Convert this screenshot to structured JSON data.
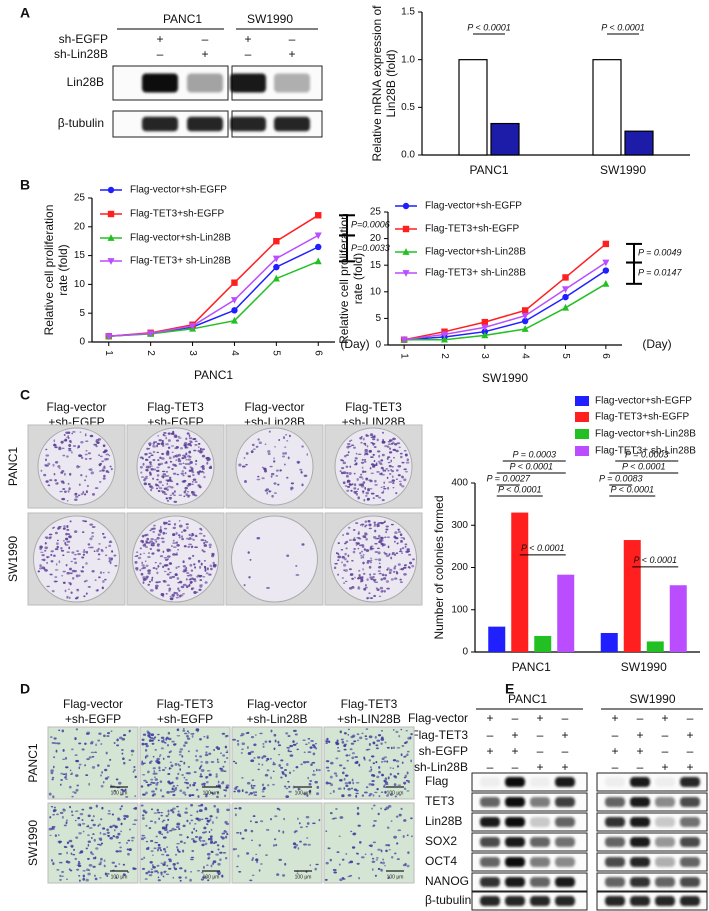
{
  "panel_labels": [
    "A",
    "B",
    "C",
    "D",
    "E"
  ],
  "blot_a": {
    "cell_lines": [
      "PANC1",
      "SW1990"
    ],
    "conditions": [
      {
        "label": "sh-EGFP",
        "signs": [
          "+",
          "–",
          "+",
          "–"
        ]
      },
      {
        "label": "sh-Lin28B",
        "signs": [
          "–",
          "+",
          "–",
          "+"
        ]
      }
    ],
    "bands": [
      "Lin28B",
      "β-tubulin"
    ]
  },
  "chart_data": [
    {
      "type": "bar",
      "y_label": [
        "Relative  mRNA expression of",
        "Lin28B (fold)"
      ],
      "categories": [
        "PANC1",
        "SW1990"
      ],
      "series": [
        {
          "color": "#ffffff",
          "values": [
            1.0,
            1.0
          ]
        },
        {
          "color": "#1c1ca8",
          "values": [
            0.33,
            0.25
          ]
        }
      ],
      "ylim": [
        0,
        1.5
      ],
      "yticks": [
        {
          "value": 0,
          "label": "0.0"
        },
        {
          "value": 0.5,
          "label": "0.5"
        },
        {
          "value": 1,
          "label": "1.0"
        },
        {
          "value": 1.5,
          "label": "1.5"
        }
      ],
      "annotations": [
        "P < 0.0001",
        "P < 0.0001"
      ]
    },
    {
      "type": "line",
      "y_label": [
        "Relative cell proliferation",
        "rate (fold)"
      ],
      "x_label": "PANC1",
      "x_unit": "(Day)",
      "x": [
        1,
        2,
        3,
        4,
        5,
        6
      ],
      "xlim": [
        0.6,
        6.4
      ],
      "xticks": [
        1,
        2,
        3,
        4,
        5,
        6
      ],
      "ylim": [
        0,
        25
      ],
      "yticks": [
        0,
        5,
        10,
        15,
        20,
        25
      ],
      "series": [
        {
          "name": "Flag-vector+sh-EGFP",
          "color": "#1f1fff",
          "values": [
            1,
            1.5,
            2.6,
            5.5,
            13,
            16.5
          ]
        },
        {
          "name": "Flag-TET3+sh-EGFP",
          "color": "#ff1f1f",
          "values": [
            1,
            1.6,
            3,
            10.3,
            17.5,
            22
          ]
        },
        {
          "name": "Flag-vector+sh-Lin28B",
          "color": "#22c022",
          "values": [
            1,
            1.4,
            2.3,
            3.7,
            11,
            14
          ]
        },
        {
          "name": "Flag-TET3+ sh-Lin28B",
          "color": "#b94dff",
          "values": [
            1,
            1.5,
            2.8,
            7.3,
            14.5,
            18.5
          ]
        }
      ],
      "annotations": [
        "P=0.0006",
        "P=0.0033"
      ]
    },
    {
      "type": "line",
      "y_label": [
        "Relative cell proliferation",
        "rate (fold)"
      ],
      "x_label": "SW1990",
      "x_unit": "(Day)",
      "x": [
        1,
        2,
        3,
        4,
        5,
        6
      ],
      "xlim": [
        0.6,
        6.4
      ],
      "xticks": [
        1,
        2,
        3,
        4,
        5,
        6
      ],
      "ylim": [
        0,
        25
      ],
      "yticks": [
        0,
        5,
        10,
        15,
        20,
        25
      ],
      "series": [
        {
          "name": "Flag-vector+sh-EGFP",
          "color": "#1f1fff",
          "values": [
            1,
            1.5,
            2.5,
            4.5,
            9,
            14
          ]
        },
        {
          "name": "Flag-TET3+sh-EGFP",
          "color": "#ff1f1f",
          "values": [
            1,
            2.5,
            4.3,
            6.5,
            12.7,
            19
          ]
        },
        {
          "name": "Flag-vector+sh-Lin28B",
          "color": "#22c022",
          "values": [
            1,
            1,
            1.8,
            3,
            7,
            11.5
          ]
        },
        {
          "name": "Flag-TET3+ sh-Lin28B",
          "color": "#b94dff",
          "values": [
            1,
            2,
            3.3,
            5.5,
            10.5,
            15.5
          ]
        }
      ],
      "annotations": [
        "P = 0.0049",
        "P = 0.0147"
      ]
    },
    {
      "type": "bar",
      "y_label": [
        "Number of colonies formed"
      ],
      "categories": [
        "PANC1",
        "SW1990"
      ],
      "series": [
        {
          "name": "Flag-vector+sh-EGFP",
          "color": "#1f1fff",
          "values": [
            60,
            45
          ]
        },
        {
          "name": "Flag-TET3+sh-EGFP",
          "color": "#ff1f1f",
          "values": [
            330,
            265
          ]
        },
        {
          "name": "Flag-vector+sh-Lin28B",
          "color": "#22c022",
          "values": [
            38,
            25
          ]
        },
        {
          "name": "Flag-TET3+ sh-Lin28B",
          "color": "#b94dff",
          "values": [
            183,
            158
          ]
        }
      ],
      "ylim": [
        0,
        400
      ],
      "yticks": [
        0,
        100,
        200,
        300,
        400
      ],
      "annotations": [
        "P = 0.0003",
        "P < 0.0001",
        "P = 0.0027",
        "P < 0.0001",
        "P < 0.0001",
        "P = 0.0003",
        "P < 0.0001",
        "P = 0.0083",
        "P < 0.0001",
        "P < 0.0001"
      ]
    }
  ],
  "colony_images": {
    "columns": [
      [
        "Flag-vector",
        "+sh-EGFP"
      ],
      [
        "Flag-TET3",
        "+sh-EGFP"
      ],
      [
        "Flag-vector",
        "+sh-Lin28B"
      ],
      [
        "Flag-TET3",
        "+sh-LIN28B"
      ]
    ],
    "rows": [
      "PANC1",
      "SW1990"
    ]
  },
  "transwell_images": {
    "columns": [
      [
        "Flag-vector",
        "+sh-EGFP"
      ],
      [
        "Flag-TET3",
        "+sh-EGFP"
      ],
      [
        "Flag-vector",
        "+sh-Lin28B"
      ],
      [
        "Flag-TET3",
        "+sh-LIN28B"
      ]
    ],
    "rows": [
      "PANC1",
      "SW1990"
    ],
    "scale_bar": "100 μm"
  },
  "blot_e": {
    "cell_lines": [
      "PANC1",
      "SW1990"
    ],
    "conditions": [
      {
        "label": "Flag-vector",
        "signs": [
          "+",
          "–",
          "+",
          "–",
          "+",
          "–",
          "+",
          "–"
        ]
      },
      {
        "label": "Flag-TET3",
        "signs": [
          "–",
          "+",
          "–",
          "+",
          "–",
          "+",
          "–",
          "+"
        ]
      },
      {
        "label": "sh-EGFP",
        "signs": [
          "+",
          "+",
          "–",
          "–",
          "+",
          "+",
          "–",
          "–"
        ]
      },
      {
        "label": "sh-Lin28B",
        "signs": [
          "–",
          "–",
          "+",
          "+",
          "–",
          "–",
          "+",
          "+"
        ]
      }
    ],
    "bands": [
      "Flag",
      "TET3",
      "Lin28B",
      "SOX2",
      "OCT4",
      "NANOG",
      "β-tubulin"
    ]
  }
}
